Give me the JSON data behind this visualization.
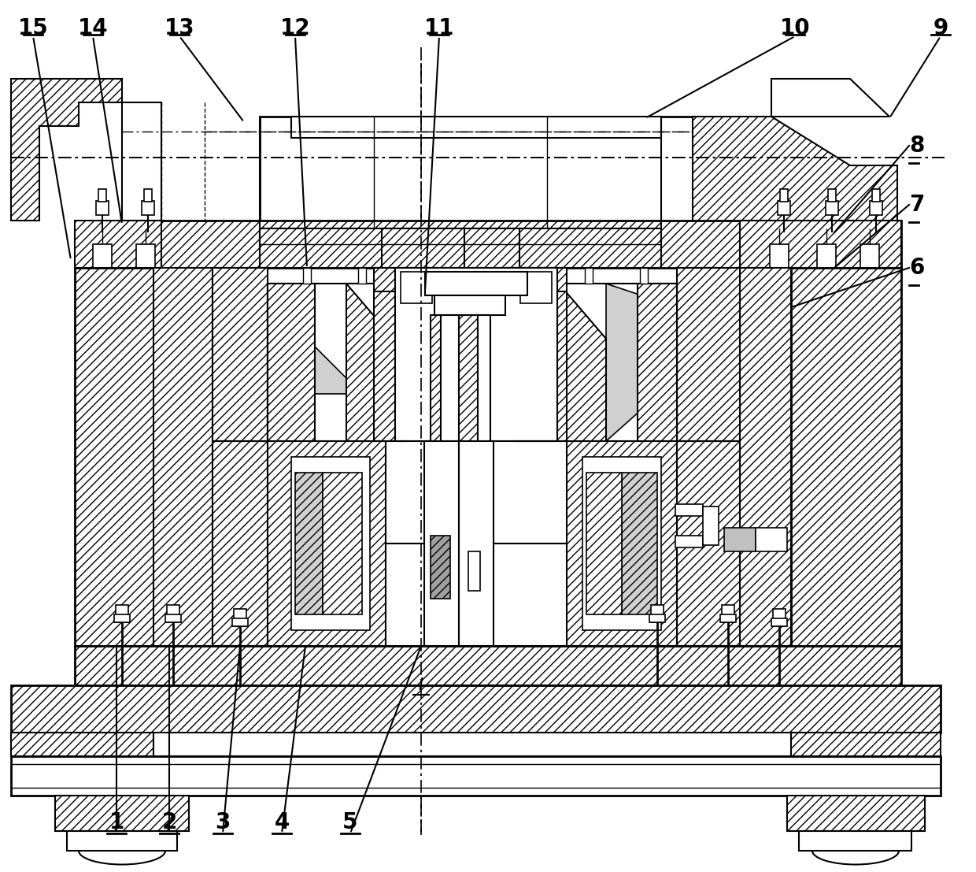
{
  "bg_color": "#ffffff",
  "line_color": "#000000",
  "figsize": [
    12.4,
    11.07
  ],
  "dpi": 100,
  "callouts_top": [
    [
      "15",
      42,
      22,
      90,
      330
    ],
    [
      "14",
      118,
      22,
      155,
      280
    ],
    [
      "13",
      228,
      22,
      310,
      155
    ],
    [
      "12",
      375,
      22,
      375,
      310
    ],
    [
      "11",
      558,
      22,
      540,
      370
    ],
    [
      "10",
      1010,
      22,
      820,
      148
    ],
    [
      "9",
      1195,
      22,
      1130,
      148
    ]
  ],
  "callouts_right": [
    [
      "8",
      1200,
      185,
      1060,
      295
    ],
    [
      "7",
      1200,
      260,
      1060,
      340
    ],
    [
      "6",
      1185,
      340,
      1060,
      390
    ]
  ],
  "callouts_bottom": [
    [
      "1",
      148,
      1058,
      148,
      820
    ],
    [
      "2",
      215,
      1058,
      215,
      820
    ],
    [
      "3",
      283,
      1058,
      303,
      820
    ],
    [
      "4",
      358,
      1058,
      388,
      820
    ],
    [
      "5",
      445,
      1058,
      535,
      820
    ]
  ],
  "label_I": [
    530,
    880
  ]
}
